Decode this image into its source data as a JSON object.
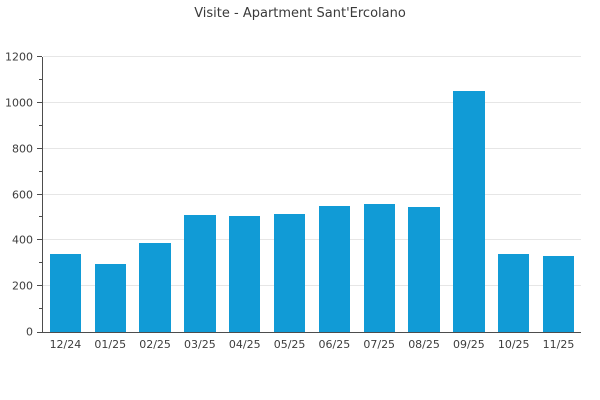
{
  "title": "Visite - Apartment Sant'Ercolano",
  "colors": {
    "bar": "#119bd6",
    "grid": "#e6e6e6",
    "axis": "#4d4d4d",
    "text": "#3d3d3d"
  },
  "chart_data": {
    "type": "bar",
    "title": "Visite - Apartment Sant'Ercolano",
    "categories": [
      "12/24",
      "01/25",
      "02/25",
      "03/25",
      "04/25",
      "05/25",
      "06/25",
      "07/25",
      "08/25",
      "09/25",
      "10/25",
      "11/25"
    ],
    "values": [
      340,
      295,
      390,
      510,
      505,
      515,
      550,
      560,
      545,
      1050,
      340,
      330
    ],
    "xlabel": "",
    "ylabel": "",
    "ylim": [
      0,
      1200
    ],
    "y_major_ticks": [
      0,
      200,
      400,
      600,
      800,
      1000,
      1200
    ],
    "y_minor_ticks": [
      100,
      300,
      500,
      700,
      900,
      1100
    ],
    "grid": true,
    "legend_position": "none",
    "bar_color": "#119bd6"
  }
}
